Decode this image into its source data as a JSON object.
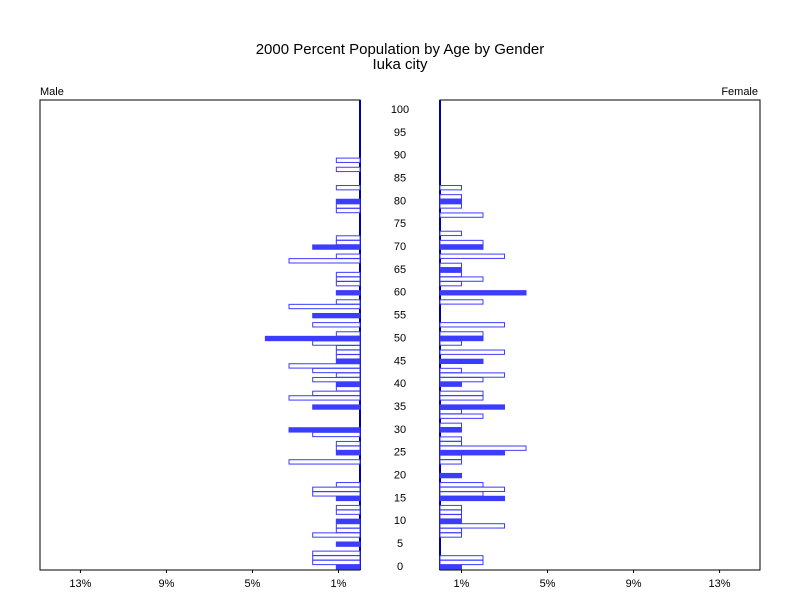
{
  "chart_data": {
    "type": "pyramid",
    "title": "2000 Percent Population by Age by Gender",
    "subtitle": "Iuka city",
    "categories": [
      "0",
      null,
      null,
      null,
      null,
      "5",
      null,
      null,
      null,
      null,
      "10",
      null,
      null,
      null,
      null,
      "15",
      null,
      null,
      null,
      null,
      "20",
      null,
      null,
      null,
      null,
      "25",
      null,
      null,
      null,
      null,
      "30",
      null,
      null,
      null,
      null,
      "35",
      null,
      null,
      null,
      null,
      "40",
      null,
      null,
      null,
      null,
      "45",
      null,
      null,
      null,
      null,
      "50",
      null,
      null,
      null,
      null,
      "55",
      null,
      null,
      null,
      null,
      "60",
      null,
      null,
      null,
      null,
      "65",
      null,
      null,
      null,
      null,
      "70",
      null,
      null,
      null,
      null,
      "75",
      null,
      null,
      null,
      null,
      "80",
      null,
      null,
      null,
      null,
      "85",
      null,
      null,
      null,
      null,
      "90",
      null,
      null,
      null,
      null,
      "95",
      null,
      null,
      null,
      null,
      "100"
    ],
    "series": [
      {
        "name": "Male",
        "color": "#3c3cff",
        "values": [
          1.1,
          2.2,
          2.2,
          2.2,
          0,
          1.1,
          0,
          2.2,
          1.1,
          1.1,
          1.1,
          0,
          1.1,
          1.1,
          0,
          1.1,
          2.2,
          2.2,
          1.1,
          0,
          0,
          0,
          0,
          3.3,
          0,
          1.1,
          1.1,
          1.1,
          0,
          2.2,
          3.3,
          0,
          0,
          0,
          0,
          2.2,
          0,
          3.3,
          2.2,
          1.1,
          1.1,
          2.2,
          1.1,
          2.2,
          3.3,
          1.1,
          1.1,
          1.1,
          1.1,
          2.2,
          4.4,
          1.1,
          0,
          2.2,
          0,
          2.2,
          0,
          3.3,
          1.1,
          0,
          1.1,
          0,
          1.1,
          1.1,
          1.1,
          0,
          0,
          3.3,
          1.1,
          0,
          2.2,
          1.1,
          1.1,
          0,
          0,
          0,
          0,
          0,
          1.1,
          1.1,
          1.1,
          0,
          0,
          1.1,
          0,
          0,
          0,
          1.1,
          0,
          1.1,
          0,
          0,
          0,
          0,
          0,
          0,
          0,
          0,
          0,
          0,
          0
        ]
      },
      {
        "name": "Female",
        "color": "#3c3cff",
        "values": [
          1,
          2,
          2,
          0,
          0,
          0,
          0,
          1,
          1,
          3,
          1,
          1,
          1,
          1,
          0,
          3,
          2,
          3,
          2,
          0,
          1,
          0,
          0,
          1,
          1,
          3,
          4,
          1,
          1,
          0,
          1,
          1,
          0,
          2,
          1,
          3,
          0,
          2,
          2,
          0,
          1,
          2,
          3,
          1,
          0,
          2,
          0,
          3,
          0,
          1,
          2,
          2,
          0,
          3,
          0,
          0,
          0,
          0,
          2,
          0,
          4,
          0,
          1,
          2,
          1,
          1,
          1,
          0,
          3,
          0,
          2,
          2,
          0,
          1,
          0,
          0,
          0,
          2,
          0,
          1,
          1,
          1,
          0,
          1,
          0,
          0,
          0,
          0,
          0,
          0,
          0,
          0,
          0,
          0,
          0,
          0,
          0,
          0,
          0,
          0,
          0
        ]
      }
    ],
    "xlim": [
      0,
      14.88
    ],
    "xticks": [
      {
        "value": 1,
        "label": "1%"
      },
      {
        "value": 5,
        "label": "5%"
      },
      {
        "value": 9,
        "label": "9%"
      },
      {
        "value": 13,
        "label": "13%"
      }
    ]
  }
}
